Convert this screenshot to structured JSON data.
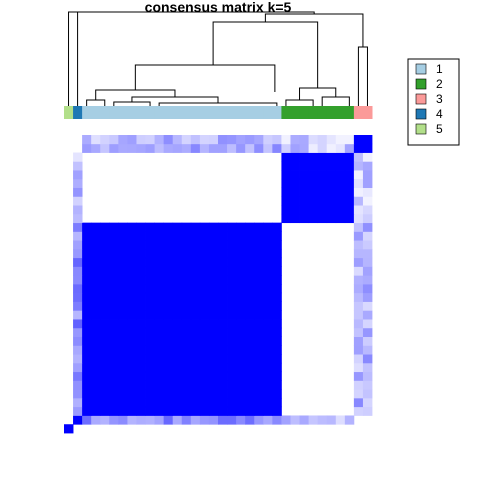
{
  "chart_data": {
    "type": "heatmap",
    "title": "consensus matrix k=5",
    "color_scale": {
      "low": "#FFFFFF",
      "high": "#0000FF",
      "range": [
        0,
        1
      ]
    },
    "cluster_colors": {
      "1": "#A6CEE3",
      "2": "#33A02C",
      "3": "#FB9A99",
      "4": "#1F78B4",
      "5": "#B2DF8A"
    },
    "legend": {
      "position": "top-right",
      "entries": [
        {
          "label": "1",
          "color": "#A6CEE3"
        },
        {
          "label": "2",
          "color": "#33A02C"
        },
        {
          "label": "3",
          "color": "#FB9A99"
        },
        {
          "label": "4",
          "color": "#1F78B4"
        },
        {
          "label": "5",
          "color": "#B2DF8A"
        }
      ]
    },
    "sample_order_clusters": [
      5,
      4,
      1,
      1,
      1,
      1,
      1,
      1,
      1,
      1,
      1,
      1,
      1,
      1,
      1,
      1,
      1,
      1,
      1,
      1,
      1,
      1,
      1,
      1,
      2,
      2,
      2,
      2,
      2,
      2,
      2,
      2,
      3,
      3
    ],
    "block_consensus": [
      {
        "clusters": [
          "1",
          "1"
        ],
        "value": 1.0
      },
      {
        "clusters": [
          "2",
          "2"
        ],
        "value": 1.0
      },
      {
        "clusters": [
          "3",
          "3"
        ],
        "value": 1.0
      },
      {
        "clusters": [
          "4",
          "4"
        ],
        "value": 1.0
      },
      {
        "clusters": [
          "5",
          "5"
        ],
        "value": 1.0
      },
      {
        "clusters": [
          "1",
          "4"
        ],
        "value": 0.45
      },
      {
        "clusters": [
          "2",
          "4"
        ],
        "value": 0.25
      },
      {
        "clusters": [
          "1",
          "3"
        ],
        "value": 0.3
      },
      {
        "clusters": [
          "2",
          "3"
        ],
        "value": 0.2
      }
    ]
  }
}
